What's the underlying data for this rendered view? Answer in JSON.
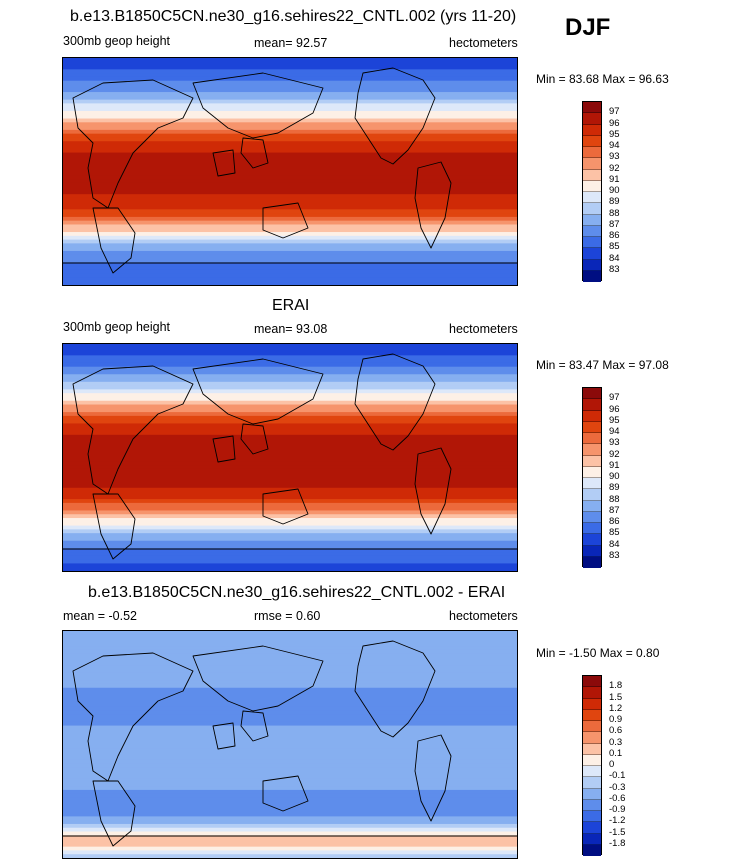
{
  "season": "DJF",
  "panels": [
    {
      "title": "b.e13.B1850C5CN.ne30_g16.sehires22_CNTL.002 (yrs 11-20)",
      "left_label": "300mb geop height",
      "center_label": "mean=  92.57",
      "right_label": "hectometers",
      "minmax": "Min =  83.68 Max =  96.63"
    },
    {
      "title": "ERAI",
      "left_label": "300mb geop height",
      "center_label": "mean=  93.08",
      "right_label": "hectometers",
      "minmax": "Min =  83.47 Max =  97.08"
    },
    {
      "title": "b.e13.B1850C5CN.ne30_g16.sehires22_CNTL.002 - ERAI",
      "left_label": "mean =  -0.52",
      "center_label": "rmse =   0.60",
      "right_label": "hectometers",
      "minmax": "Min =  -1.50 Max =   0.80"
    }
  ],
  "chart_data": [
    {
      "type": "heatmap",
      "variable": "300mb geop height",
      "units": "hectometers",
      "mean": 92.57,
      "min": 83.68,
      "max": 96.63,
      "colorbar": {
        "labels": [
          "97",
          "96",
          "95",
          "94",
          "93",
          "92",
          "91",
          "90",
          "89",
          "88",
          "87",
          "86",
          "85",
          "84",
          "83"
        ],
        "colors": [
          "#8b0a0a",
          "#b11606",
          "#cf2a06",
          "#e0450f",
          "#ec6a3c",
          "#f6946c",
          "#fcc2a6",
          "#fdf0e6",
          "#dde8f9",
          "#b2cdf5",
          "#86aff0",
          "#5e8deb",
          "#3b6be6",
          "#1c44d8",
          "#0926b8",
          "#000e82"
        ]
      },
      "zonal_profile": [
        {
          "lat": 90,
          "value": 84
        },
        {
          "lat": 75,
          "value": 85.5
        },
        {
          "lat": 60,
          "value": 87.5
        },
        {
          "lat": 45,
          "value": 90.5
        },
        {
          "lat": 30,
          "value": 94
        },
        {
          "lat": 15,
          "value": 96
        },
        {
          "lat": 0,
          "value": 96.3
        },
        {
          "lat": -15,
          "value": 96.2
        },
        {
          "lat": -30,
          "value": 95.2
        },
        {
          "lat": -45,
          "value": 91.5
        },
        {
          "lat": -60,
          "value": 87.5
        },
        {
          "lat": -75,
          "value": 85.5
        },
        {
          "lat": -90,
          "value": 85
        }
      ]
    },
    {
      "type": "heatmap",
      "variable": "300mb geop height",
      "units": "hectometers",
      "mean": 93.08,
      "min": 83.47,
      "max": 97.08,
      "colorbar": {
        "labels": [
          "97",
          "96",
          "95",
          "94",
          "93",
          "92",
          "91",
          "90",
          "89",
          "88",
          "87",
          "86",
          "85",
          "84",
          "83"
        ],
        "colors": [
          "#8b0a0a",
          "#b11606",
          "#cf2a06",
          "#e0450f",
          "#ec6a3c",
          "#f6946c",
          "#fcc2a6",
          "#fdf0e6",
          "#dde8f9",
          "#b2cdf5",
          "#86aff0",
          "#5e8deb",
          "#3b6be6",
          "#1c44d8",
          "#0926b8",
          "#000e82"
        ]
      },
      "zonal_profile": [
        {
          "lat": 90,
          "value": 84
        },
        {
          "lat": 75,
          "value": 85.5
        },
        {
          "lat": 60,
          "value": 88
        },
        {
          "lat": 45,
          "value": 91
        },
        {
          "lat": 30,
          "value": 94.5
        },
        {
          "lat": 15,
          "value": 96.3
        },
        {
          "lat": 0,
          "value": 96.5
        },
        {
          "lat": -15,
          "value": 96.5
        },
        {
          "lat": -30,
          "value": 95.5
        },
        {
          "lat": -45,
          "value": 92
        },
        {
          "lat": -60,
          "value": 88
        },
        {
          "lat": -75,
          "value": 85.5
        },
        {
          "lat": -90,
          "value": 84.5
        }
      ]
    },
    {
      "type": "heatmap",
      "variable": "difference (model - ERAI)",
      "units": "hectometers",
      "mean": -0.52,
      "rmse": 0.6,
      "min": -1.5,
      "max": 0.8,
      "colorbar": {
        "labels": [
          "1.8",
          "1.5",
          "1.2",
          "0.9",
          "0.6",
          "0.3",
          "0.1",
          "0",
          "-0.1",
          "-0.3",
          "-0.6",
          "-0.9",
          "-1.2",
          "-1.5",
          "-1.8"
        ],
        "colors": [
          "#8b0a0a",
          "#b11606",
          "#cf2a06",
          "#e0450f",
          "#ec6a3c",
          "#f6946c",
          "#fcc2a6",
          "#fdf0e6",
          "#dde8f9",
          "#b2cdf5",
          "#86aff0",
          "#5e8deb",
          "#3b6be6",
          "#1c44d8",
          "#0926b8",
          "#000e82"
        ]
      },
      "zonal_profile": [
        {
          "lat": 90,
          "value": -0.45
        },
        {
          "lat": 60,
          "value": -0.5
        },
        {
          "lat": 30,
          "value": -0.7
        },
        {
          "lat": 0,
          "value": -0.5
        },
        {
          "lat": -30,
          "value": -0.55
        },
        {
          "lat": -55,
          "value": -0.8
        },
        {
          "lat": -75,
          "value": 0.35
        },
        {
          "lat": -90,
          "value": -0.2
        }
      ]
    }
  ]
}
